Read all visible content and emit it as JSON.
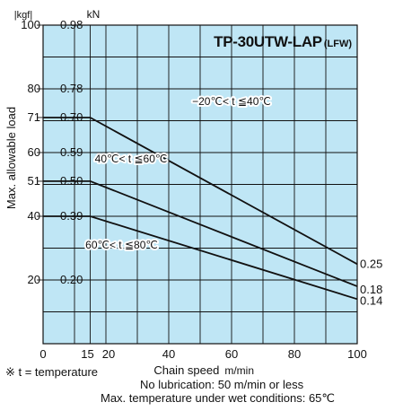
{
  "chart_data": {
    "type": "line",
    "title": "TP-30UTW-LAP",
    "title_suffix": "(LFW)",
    "xlabel": "Chain speed",
    "xunit": "m/min",
    "ylabel": "Max. allowable load",
    "yunit_left": "|kgf|",
    "yunit_right": "kN",
    "xlim": [
      0,
      100
    ],
    "ylim": [
      0,
      100
    ],
    "x_ticks": [
      {
        "value": 0,
        "label": "0"
      },
      {
        "value": 15,
        "label": "15"
      },
      {
        "value": 20,
        "label": "20"
      },
      {
        "value": 40,
        "label": "40"
      },
      {
        "value": 60,
        "label": "60"
      },
      {
        "value": 80,
        "label": "80"
      },
      {
        "value": 100,
        "label": "100"
      }
    ],
    "y_ticks": [
      {
        "kgf": 100,
        "kgf_label": "100",
        "kn_label": "0.98"
      },
      {
        "kgf": 80,
        "kgf_label": "80",
        "kn_label": "0.78"
      },
      {
        "kgf": 71,
        "kgf_label": "71",
        "kn_label": "0.70"
      },
      {
        "kgf": 60,
        "kgf_label": "60",
        "kn_label": "0.59"
      },
      {
        "kgf": 51,
        "kgf_label": "51",
        "kn_label": "0.50"
      },
      {
        "kgf": 40,
        "kgf_label": "40",
        "kn_label": "0.39"
      },
      {
        "kgf": 20,
        "kgf_label": "20",
        "kn_label": "0.20"
      }
    ],
    "grid": true,
    "background": "#bfe6f5",
    "series": [
      {
        "name": "−20℃< t ≦40℃",
        "end_label": "0.25",
        "points": [
          [
            0,
            71
          ],
          [
            15,
            71
          ],
          [
            100,
            25
          ]
        ]
      },
      {
        "name": "40℃< t ≦60℃",
        "end_label": "0.18",
        "points": [
          [
            0,
            51
          ],
          [
            15,
            51
          ],
          [
            100,
            18
          ]
        ]
      },
      {
        "name": "60℃< t ≦80℃",
        "end_label": "0.14",
        "points": [
          [
            0,
            40
          ],
          [
            15,
            40
          ],
          [
            100,
            14
          ]
        ]
      }
    ]
  },
  "notes": {
    "temperature": "※ t = temperature",
    "lubrication": "No lubrication: 50 m/min or less",
    "wet": "Max. temperature under wet conditions: 65℃"
  }
}
